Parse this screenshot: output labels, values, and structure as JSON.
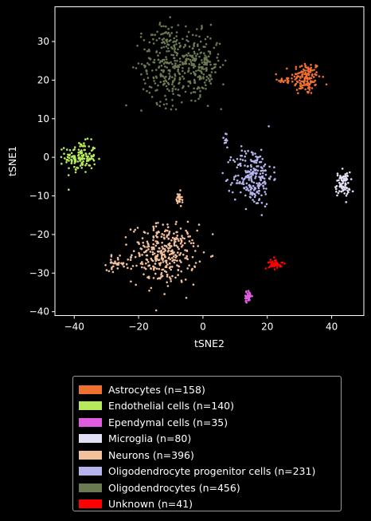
{
  "chart_data": {
    "type": "scatter",
    "xlabel": "tSNE2",
    "ylabel": "tSNE1",
    "xlim": [
      -46,
      50
    ],
    "ylim": [
      -41,
      39
    ],
    "x_ticks": [
      -40,
      -20,
      0,
      20,
      40
    ],
    "y_ticks": [
      -40,
      -30,
      -20,
      -10,
      0,
      10,
      20,
      30
    ],
    "grid": false,
    "legend_position": "below",
    "series": [
      {
        "name": "Astrocytes (n=158)",
        "color": "#f07030",
        "clusters": [
          {
            "cx": 32,
            "cy": 20.5,
            "sx": 2.3,
            "sy": 2.2,
            "n": 140
          },
          {
            "cx": 25.5,
            "cy": 20,
            "sx": 1.2,
            "sy": 0.4,
            "n": 18
          }
        ]
      },
      {
        "name": "Endothelial cells (n=140)",
        "color": "#b6ea5a",
        "clusters": [
          {
            "cx": -38,
            "cy": 0,
            "sx": 2.4,
            "sy": 2.0,
            "n": 140
          }
        ]
      },
      {
        "name": "Ependymal cells (n=35)",
        "color": "#e05ce0",
        "clusters": [
          {
            "cx": 14,
            "cy": -36,
            "sx": 0.6,
            "sy": 0.7,
            "n": 35
          }
        ]
      },
      {
        "name": "Microglia (n=80)",
        "color": "#e2e0f4",
        "clusters": [
          {
            "cx": 43.5,
            "cy": -7,
            "sx": 1.1,
            "sy": 1.6,
            "n": 80
          }
        ]
      },
      {
        "name": "Neurons (n=396)",
        "color": "#f3c09c",
        "clusters": [
          {
            "cx": -12,
            "cy": -25,
            "sx": 5.0,
            "sy": 3.8,
            "n": 340
          },
          {
            "cx": -27,
            "cy": -27.5,
            "sx": 1.4,
            "sy": 0.9,
            "n": 30
          },
          {
            "cx": -7.5,
            "cy": -11,
            "sx": 0.5,
            "sy": 1.0,
            "n": 26
          }
        ]
      },
      {
        "name": "Oligodendrocyte progenitor cells (n=231)",
        "color": "#b6b4ec",
        "clusters": [
          {
            "cx": 15.5,
            "cy": -5,
            "sx": 3.0,
            "sy": 3.8,
            "n": 221
          },
          {
            "cx": 7,
            "cy": 4.5,
            "sx": 0.5,
            "sy": 1.2,
            "n": 10
          }
        ]
      },
      {
        "name": "Oligodendrocytes (n=456)",
        "color": "#6b7a52",
        "clusters": [
          {
            "cx": -11,
            "cy": 24,
            "sx": 4.0,
            "sy": 5.0,
            "n": 230
          },
          {
            "cx": -1,
            "cy": 24,
            "sx": 3.2,
            "sy": 4.0,
            "n": 200
          },
          {
            "cx": -12,
            "cy": 31,
            "sx": 3.0,
            "sy": 2.0,
            "n": 26
          }
        ]
      },
      {
        "name": "Unknown (n=41)",
        "color": "#ff0000",
        "clusters": [
          {
            "cx": 22.5,
            "cy": -27.5,
            "sx": 1.0,
            "sy": 0.7,
            "n": 41
          }
        ]
      }
    ]
  }
}
